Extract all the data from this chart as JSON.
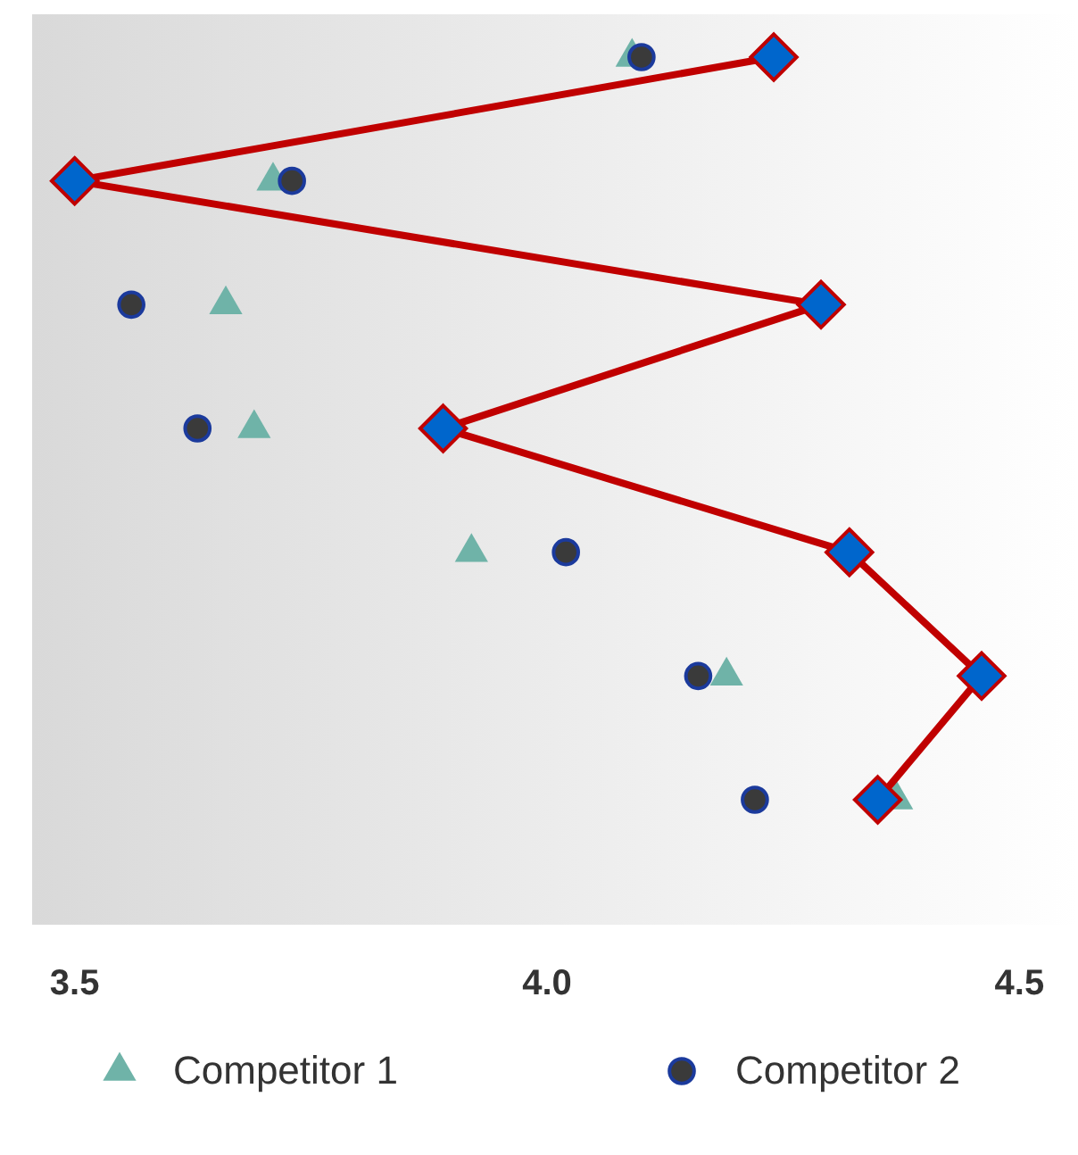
{
  "chart_data": {
    "type": "line",
    "orientation": "horizontal",
    "categories": [
      null,
      null,
      null,
      null,
      null,
      null,
      null
    ],
    "xlim": [
      3.455,
      4.562
    ],
    "xticks": [
      3.5,
      {
        "value": 4.0,
        "label": "4.0"
      },
      4.5
    ],
    "legend": "bottom",
    "series": [
      {
        "name": "Competitor 1",
        "type": "scatter",
        "marker": "triangle",
        "color": "#6fb3a8",
        "values": [
          4.09,
          3.71,
          3.66,
          3.69,
          3.92,
          4.19,
          4.37
        ]
      },
      {
        "name": "Competitor 2",
        "type": "scatter",
        "marker": "circle",
        "color": "#1b3a9c",
        "colors": [
          "#3a3a3a",
          "#3a3a3a",
          "#3a3a3a",
          "#3a3a3a",
          "#3a3a3a",
          "#3a3a3a",
          "#3a3a3a"
        ],
        "values": [
          4.1,
          3.73,
          3.56,
          3.63,
          4.02,
          4.16,
          4.22
        ]
      },
      {
        "marker": "diamond",
        "color": "#c00000",
        "colors": [
          "#0066cc",
          "#0066cc",
          "#0066cc",
          "#0066cc",
          "#0066cc",
          "#0066cc",
          "#0066cc"
        ],
        "values": [
          4.24,
          3.5,
          4.29,
          3.89,
          4.32,
          4.46,
          4.35
        ]
      }
    ]
  }
}
